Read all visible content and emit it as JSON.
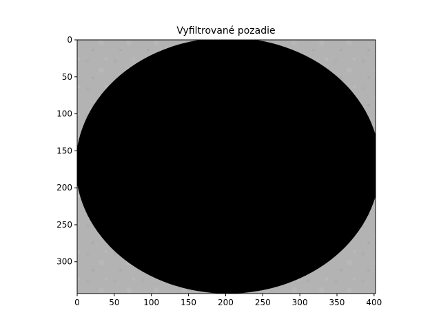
{
  "chart_data": {
    "type": "heatmap",
    "title": "Vyfiltrované pozadie",
    "xlabel": "",
    "ylabel": "",
    "xlim": [
      0,
      402
    ],
    "ylim": [
      343,
      0
    ],
    "x_ticks": [
      0,
      50,
      100,
      150,
      200,
      250,
      300,
      350,
      400
    ],
    "y_ticks": [
      0,
      50,
      100,
      150,
      200,
      250,
      300
    ],
    "grid": false,
    "image": {
      "background_color": "#b4b4b4",
      "mask_color": "#000000",
      "mask_shape": "ellipse",
      "mask_center": [
        203,
        170
      ],
      "mask_radii": [
        205,
        173
      ]
    }
  }
}
